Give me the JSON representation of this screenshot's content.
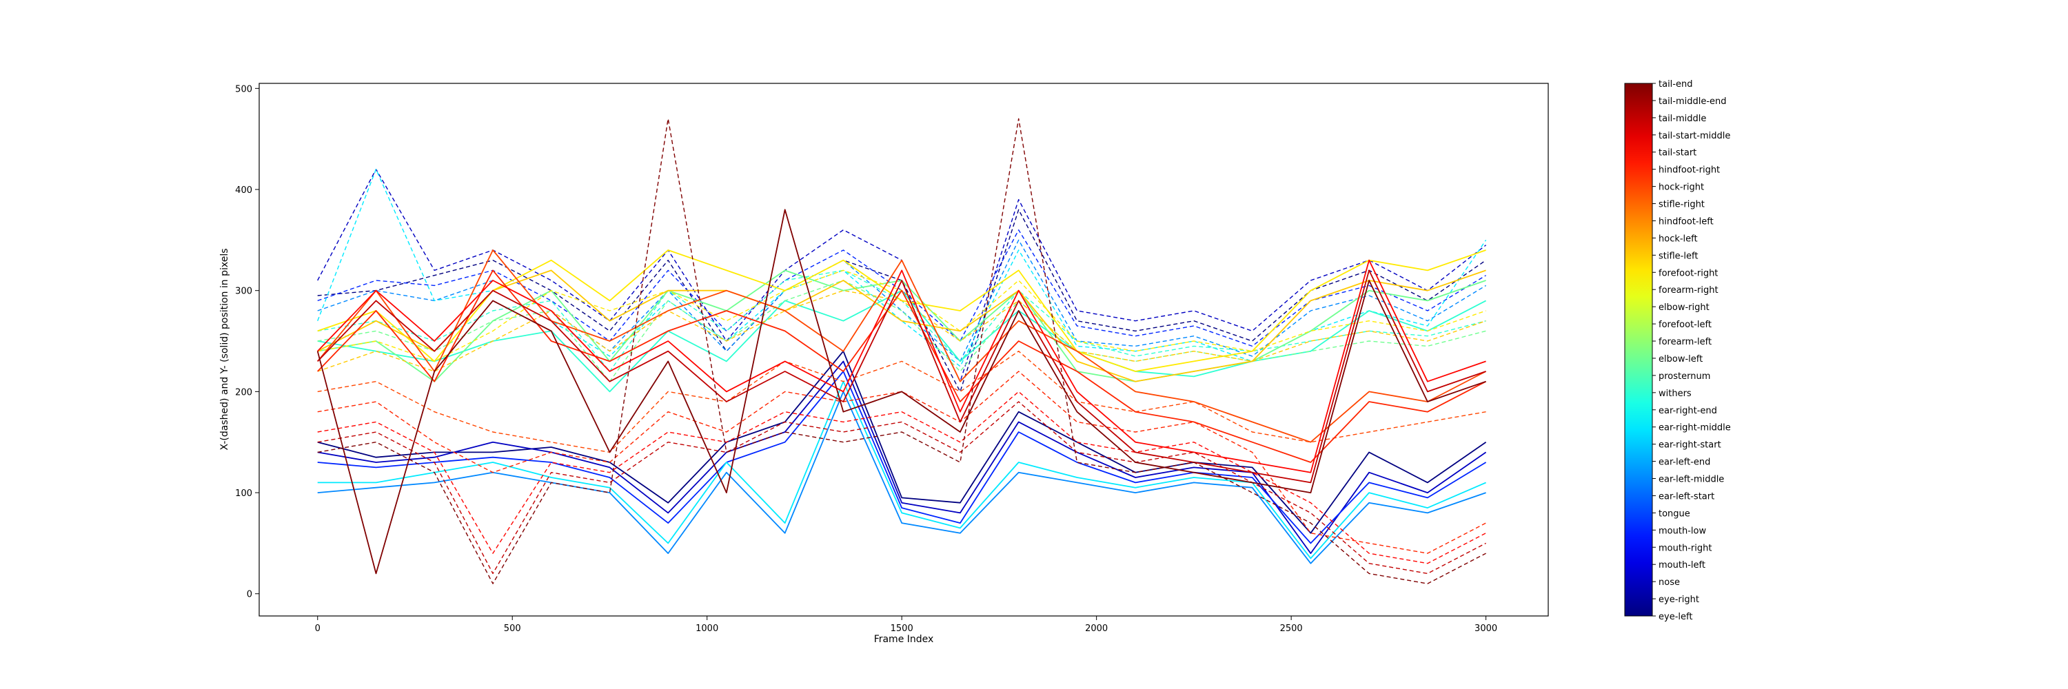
{
  "chart_data": {
    "type": "line",
    "title": "",
    "xlabel": "Frame Index",
    "ylabel": "X-(dashed) and Y- (solid) position in pixels",
    "xlim": [
      -150,
      3160
    ],
    "ylim": [
      -22,
      505
    ],
    "xticks": [
      0,
      500,
      1000,
      1500,
      2000,
      2500,
      3000
    ],
    "yticks": [
      0,
      100,
      200,
      300,
      400,
      500
    ],
    "colormap": "jet",
    "legend_placement": "right colorbar",
    "series_styles": {
      "x": "dashed",
      "y": "solid"
    },
    "bodyparts": [
      "eye-left",
      "eye-right",
      "nose",
      "mouth-left",
      "mouth-right",
      "mouth-low",
      "tongue",
      "ear-left-start",
      "ear-left-middle",
      "ear-left-end",
      "ear-right-start",
      "ear-right-middle",
      "ear-right-end",
      "withers",
      "prosternum",
      "elbow-left",
      "forearm-left",
      "forefoot-left",
      "elbow-right",
      "forearm-right",
      "forefoot-right",
      "stifle-left",
      "hock-left",
      "hindfoot-left",
      "stifle-right",
      "hock-right",
      "hindfoot-right",
      "tail-start",
      "tail-start-middle",
      "tail-middle",
      "tail-middle-end",
      "tail-end"
    ],
    "frames": [
      0,
      150,
      300,
      450,
      600,
      750,
      900,
      1050,
      1200,
      1350,
      1500,
      1650,
      1800,
      1950,
      2100,
      2250,
      2400,
      2550,
      2700,
      2850,
      3000
    ],
    "series": [
      {
        "name": "eye-left",
        "kind": "x",
        "values": [
          295,
          300,
          315,
          330,
          300,
          260,
          330,
          240,
          300,
          330,
          310,
          200,
          380,
          270,
          260,
          270,
          250,
          300,
          320,
          290,
          330
        ]
      },
      {
        "name": "eye-left",
        "kind": "y",
        "values": [
          150,
          135,
          140,
          140,
          145,
          130,
          90,
          150,
          170,
          240,
          95,
          90,
          180,
          150,
          120,
          130,
          125,
          60,
          140,
          110,
          150
        ]
      },
      {
        "name": "nose",
        "kind": "x",
        "values": [
          310,
          420,
          320,
          340,
          310,
          270,
          340,
          250,
          320,
          360,
          330,
          210,
          390,
          280,
          270,
          280,
          260,
          310,
          330,
          300,
          345
        ]
      },
      {
        "name": "nose",
        "kind": "y",
        "values": [
          140,
          130,
          135,
          150,
          140,
          125,
          80,
          140,
          160,
          230,
          90,
          80,
          170,
          140,
          115,
          125,
          120,
          40,
          120,
          100,
          140
        ]
      },
      {
        "name": "mouth-low",
        "kind": "x",
        "values": [
          290,
          310,
          305,
          320,
          290,
          250,
          320,
          260,
          310,
          340,
          300,
          250,
          360,
          265,
          255,
          265,
          245,
          290,
          305,
          280,
          315
        ]
      },
      {
        "name": "mouth-low",
        "kind": "y",
        "values": [
          130,
          125,
          130,
          135,
          130,
          115,
          70,
          130,
          150,
          220,
          85,
          70,
          160,
          130,
          110,
          120,
          115,
          50,
          110,
          95,
          130
        ]
      },
      {
        "name": "ear-left-middle",
        "kind": "x",
        "values": [
          280,
          300,
          290,
          310,
          280,
          240,
          300,
          240,
          300,
          330,
          280,
          230,
          350,
          250,
          245,
          255,
          235,
          280,
          295,
          270,
          305
        ]
      },
      {
        "name": "ear-left-middle",
        "kind": "y",
        "values": [
          100,
          105,
          110,
          120,
          110,
          100,
          40,
          120,
          60,
          200,
          70,
          60,
          120,
          110,
          100,
          110,
          105,
          30,
          90,
          80,
          100
        ]
      },
      {
        "name": "ear-right-middle",
        "kind": "x",
        "values": [
          270,
          420,
          290,
          300,
          270,
          235,
          290,
          250,
          300,
          320,
          270,
          225,
          340,
          245,
          240,
          250,
          230,
          260,
          280,
          265,
          350
        ]
      },
      {
        "name": "ear-right-middle",
        "kind": "y",
        "values": [
          110,
          110,
          120,
          130,
          115,
          105,
          50,
          130,
          70,
          210,
          80,
          65,
          130,
          115,
          105,
          115,
          110,
          35,
          100,
          85,
          110
        ]
      },
      {
        "name": "withers",
        "kind": "x",
        "values": [
          260,
          270,
          250,
          280,
          290,
          220,
          300,
          260,
          310,
          320,
          290,
          230,
          300,
          250,
          235,
          245,
          240,
          250,
          260,
          255,
          270
        ]
      },
      {
        "name": "withers",
        "kind": "y",
        "values": [
          250,
          240,
          230,
          250,
          260,
          200,
          260,
          230,
          290,
          270,
          300,
          230,
          280,
          240,
          220,
          215,
          230,
          240,
          280,
          260,
          290
        ]
      },
      {
        "name": "elbow-left",
        "kind": "x",
        "values": [
          250,
          260,
          240,
          270,
          280,
          210,
          290,
          250,
          290,
          310,
          280,
          220,
          290,
          240,
          230,
          240,
          230,
          240,
          250,
          245,
          260
        ]
      },
      {
        "name": "elbow-left",
        "kind": "y",
        "values": [
          240,
          250,
          210,
          270,
          300,
          230,
          300,
          280,
          320,
          300,
          310,
          250,
          300,
          220,
          210,
          220,
          230,
          260,
          300,
          290,
          310
        ]
      },
      {
        "name": "forefoot-right",
        "kind": "x",
        "values": [
          240,
          250,
          230,
          260,
          300,
          280,
          300,
          270,
          300,
          320,
          300,
          260,
          310,
          250,
          240,
          250,
          240,
          260,
          270,
          260,
          280
        ]
      },
      {
        "name": "forefoot-right",
        "kind": "y",
        "values": [
          260,
          280,
          230,
          300,
          330,
          290,
          340,
          320,
          300,
          330,
          290,
          280,
          320,
          240,
          220,
          230,
          240,
          300,
          330,
          320,
          340
        ]
      },
      {
        "name": "stifle-left",
        "kind": "x",
        "values": [
          220,
          240,
          220,
          250,
          280,
          240,
          280,
          250,
          280,
          300,
          290,
          250,
          290,
          240,
          230,
          240,
          230,
          250,
          260,
          250,
          270
        ]
      },
      {
        "name": "stifle-left",
        "kind": "y",
        "values": [
          240,
          270,
          240,
          300,
          320,
          270,
          300,
          300,
          280,
          310,
          270,
          260,
          300,
          230,
          210,
          220,
          230,
          290,
          310,
          300,
          320
        ]
      },
      {
        "name": "hock-right",
        "kind": "x",
        "values": [
          200,
          210,
          180,
          160,
          150,
          140,
          200,
          190,
          230,
          210,
          230,
          200,
          240,
          190,
          180,
          190,
          160,
          150,
          160,
          170,
          180
        ]
      },
      {
        "name": "hock-right",
        "kind": "y",
        "values": [
          230,
          300,
          220,
          340,
          270,
          250,
          280,
          300,
          280,
          240,
          330,
          210,
          270,
          240,
          200,
          190,
          170,
          150,
          200,
          190,
          220
        ]
      },
      {
        "name": "hindfoot-right",
        "kind": "x",
        "values": [
          180,
          190,
          150,
          120,
          140,
          130,
          180,
          160,
          200,
          190,
          200,
          170,
          220,
          170,
          160,
          170,
          140,
          60,
          50,
          40,
          70
        ]
      },
      {
        "name": "hindfoot-right",
        "kind": "y",
        "values": [
          220,
          280,
          210,
          320,
          250,
          230,
          260,
          280,
          260,
          220,
          300,
          190,
          250,
          220,
          180,
          170,
          150,
          130,
          190,
          180,
          210
        ]
      },
      {
        "name": "tail-start",
        "kind": "x",
        "values": [
          160,
          170,
          140,
          40,
          130,
          120,
          160,
          150,
          180,
          170,
          180,
          150,
          200,
          150,
          140,
          150,
          120,
          90,
          40,
          30,
          60
        ]
      },
      {
        "name": "tail-start",
        "kind": "y",
        "values": [
          240,
          300,
          250,
          310,
          280,
          220,
          250,
          200,
          230,
          200,
          320,
          180,
          300,
          200,
          150,
          140,
          130,
          120,
          330,
          210,
          230
        ]
      },
      {
        "name": "tail-middle",
        "kind": "x",
        "values": [
          150,
          160,
          130,
          20,
          120,
          110,
          150,
          140,
          170,
          160,
          170,
          140,
          190,
          140,
          130,
          140,
          110,
          80,
          30,
          20,
          50
        ]
      },
      {
        "name": "tail-middle",
        "kind": "y",
        "values": [
          230,
          290,
          240,
          300,
          270,
          210,
          240,
          190,
          220,
          190,
          310,
          170,
          290,
          190,
          140,
          130,
          120,
          110,
          320,
          200,
          220
        ]
      },
      {
        "name": "tail-end",
        "kind": "x",
        "values": [
          140,
          150,
          120,
          10,
          110,
          100,
          470,
          140,
          160,
          150,
          160,
          130,
          470,
          130,
          120,
          130,
          100,
          70,
          20,
          10,
          40
        ]
      },
      {
        "name": "tail-end",
        "kind": "y",
        "values": [
          240,
          20,
          220,
          290,
          260,
          140,
          230,
          100,
          380,
          180,
          200,
          160,
          280,
          180,
          130,
          120,
          110,
          100,
          310,
          190,
          210
        ]
      }
    ]
  }
}
